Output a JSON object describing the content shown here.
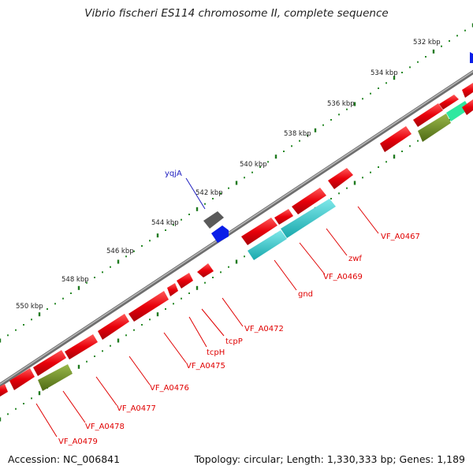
{
  "title": "Vibrio fischeri ES114 chromosome II, complete sequence",
  "footer": {
    "accession": "Accession: NC_006841",
    "summary": "Topology: circular; Length: 1,330,333 bp; Genes: 1,189"
  },
  "ruler": {
    "ticks": [
      "532 kbp",
      "534 kbp",
      "536 kbp",
      "538 kbp",
      "540 kbp",
      "542 kbp",
      "544 kbp",
      "546 kbp",
      "548 kbp",
      "550 kbp"
    ]
  },
  "colors": {
    "forward_cds": "#e8000a",
    "reverse_cds": "#e8000a",
    "cyan_feature": "#2ec8cc",
    "olive_feature": "#6b8c1e",
    "green_feature": "#2fe8a0",
    "gray_feature": "#5a5a5a",
    "blue_feature": "#0a1ee8",
    "backbone": "#8c8c8c",
    "tick_dot": "#2a8a2a",
    "label_red": "#e00000",
    "label_blue": "#2020c0"
  },
  "gene_labels": [
    {
      "text": "yqjA",
      "color": "blue"
    },
    {
      "text": "VF_A0467",
      "color": "red"
    },
    {
      "text": "zwf",
      "color": "red"
    },
    {
      "text": "VF_A0469",
      "color": "red"
    },
    {
      "text": "gnd",
      "color": "red"
    },
    {
      "text": "VF_A0472",
      "color": "red"
    },
    {
      "text": "tcpP",
      "color": "red"
    },
    {
      "text": "tcpH",
      "color": "red"
    },
    {
      "text": "VF_A0475",
      "color": "red"
    },
    {
      "text": "VF_A0476",
      "color": "red"
    },
    {
      "text": "VF_A0477",
      "color": "red"
    },
    {
      "text": "VF_A0478",
      "color": "red"
    },
    {
      "text": "VF_A0479",
      "color": "red"
    }
  ]
}
